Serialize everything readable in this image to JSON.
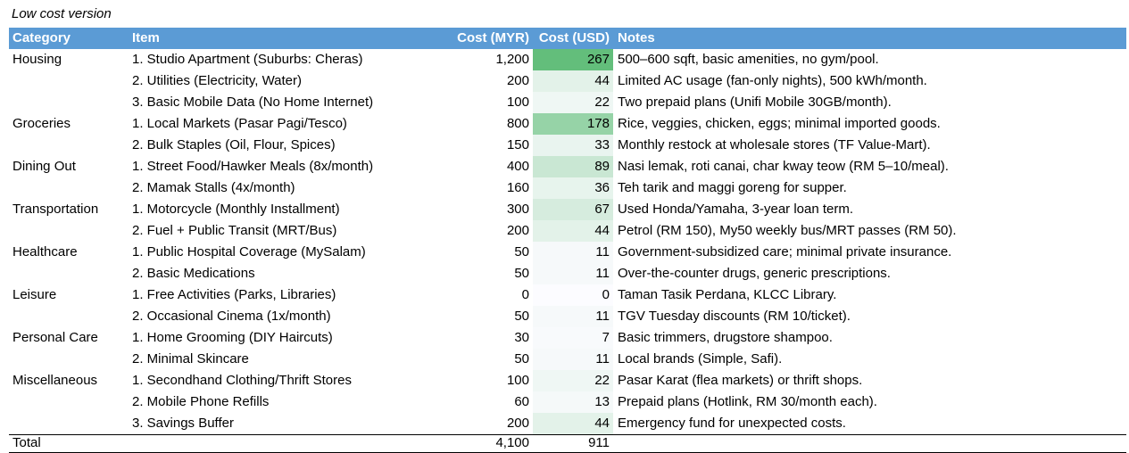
{
  "title": "Low cost version",
  "table": {
    "columns": [
      {
        "key": "category",
        "label": "Category"
      },
      {
        "key": "item",
        "label": "Item"
      },
      {
        "key": "myr",
        "label": "Cost (MYR)"
      },
      {
        "key": "usd",
        "label": "Cost (USD)"
      },
      {
        "key": "notes",
        "label": "Notes"
      }
    ],
    "rows": [
      {
        "category": "Housing",
        "item": "1. Studio Apartment (Suburbs: Cheras)",
        "myr": "1,200",
        "usd": 267,
        "notes": "500–600 sqft, basic amenities, no gym/pool."
      },
      {
        "category": "",
        "item": "2. Utilities (Electricity, Water)",
        "myr": "200",
        "usd": 44,
        "notes": "Limited AC usage (fan-only nights), 500 kWh/month."
      },
      {
        "category": "",
        "item": "3. Basic Mobile Data (No Home Internet)",
        "myr": "100",
        "usd": 22,
        "notes": "Two prepaid plans (Unifi Mobile 30GB/month)."
      },
      {
        "category": "Groceries",
        "item": "1. Local Markets (Pasar Pagi/Tesco)",
        "myr": "800",
        "usd": 178,
        "notes": "Rice, veggies, chicken, eggs; minimal imported goods."
      },
      {
        "category": "",
        "item": "2. Bulk Staples (Oil, Flour, Spices)",
        "myr": "150",
        "usd": 33,
        "notes": "Monthly restock at wholesale stores (TF Value-Mart)."
      },
      {
        "category": "Dining Out",
        "item": "1. Street Food/Hawker Meals (8x/month)",
        "myr": "400",
        "usd": 89,
        "notes": "Nasi lemak, roti canai, char kway teow (RM 5–10/meal)."
      },
      {
        "category": "",
        "item": "2. Mamak Stalls (4x/month)",
        "myr": "160",
        "usd": 36,
        "notes": "Teh tarik and maggi goreng for supper."
      },
      {
        "category": "Transportation",
        "item": "1. Motorcycle (Monthly Installment)",
        "myr": "300",
        "usd": 67,
        "notes": "Used Honda/Yamaha, 3-year loan term."
      },
      {
        "category": "",
        "item": "2. Fuel + Public Transit (MRT/Bus)",
        "myr": "200",
        "usd": 44,
        "notes": "Petrol (RM 150), My50 weekly bus/MRT passes (RM 50)."
      },
      {
        "category": "Healthcare",
        "item": "1. Public Hospital Coverage (MySalam)",
        "myr": "50",
        "usd": 11,
        "notes": "Government-subsidized care; minimal private insurance."
      },
      {
        "category": "",
        "item": "2. Basic Medications",
        "myr": "50",
        "usd": 11,
        "notes": "Over-the-counter drugs, generic prescriptions."
      },
      {
        "category": "Leisure",
        "item": "1. Free Activities (Parks, Libraries)",
        "myr": "0",
        "usd": 0,
        "notes": "Taman Tasik Perdana, KLCC Library."
      },
      {
        "category": "",
        "item": "2. Occasional Cinema (1x/month)",
        "myr": "50",
        "usd": 11,
        "notes": "TGV Tuesday discounts (RM 10/ticket)."
      },
      {
        "category": "Personal Care",
        "item": "1. Home Grooming (DIY Haircuts)",
        "myr": "30",
        "usd": 7,
        "notes": "Basic trimmers, drugstore shampoo."
      },
      {
        "category": "",
        "item": "2. Minimal Skincare",
        "myr": "50",
        "usd": 11,
        "notes": "Local brands (Simple, Safi)."
      },
      {
        "category": "Miscellaneous",
        "item": "1. Secondhand Clothing/Thrift Stores",
        "myr": "100",
        "usd": 22,
        "notes": "Pasar Karat (flea markets) or thrift shops."
      },
      {
        "category": "",
        "item": "2. Mobile Phone Refills",
        "myr": "60",
        "usd": 13,
        "notes": "Prepaid plans (Hotlink, RM 30/month each)."
      },
      {
        "category": "",
        "item": "3. Savings Buffer",
        "myr": "200",
        "usd": 44,
        "notes": "Emergency fund for unexpected costs."
      }
    ],
    "total": {
      "label": "Total",
      "myr": "4,100",
      "usd": "911"
    }
  },
  "colors": {
    "header_bg": "#5B9BD5",
    "header_text": "#FFFFFF",
    "usd_scale_min": "#FCFCFF",
    "usd_scale_max": "#63BE7B",
    "usd_scale_max_value": 267
  }
}
